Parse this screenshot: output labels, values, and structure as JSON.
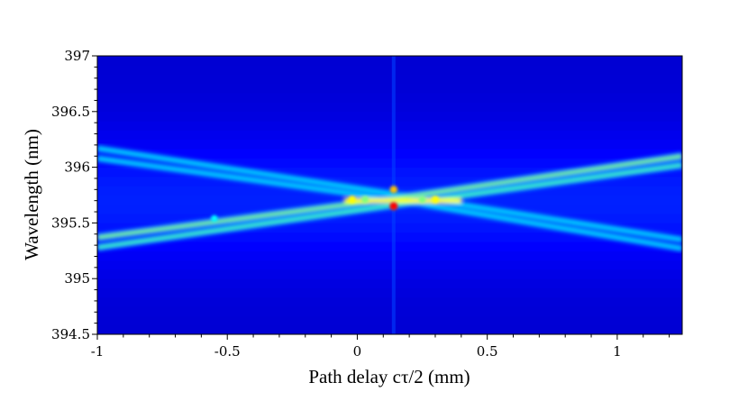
{
  "chart_data": {
    "type": "heatmap",
    "title": "",
    "xlabel": "Path delay cτ/2 (mm)",
    "ylabel": "Wavelength (nm)",
    "xlim": [
      -1,
      1.25
    ],
    "ylim": [
      394.5,
      397
    ],
    "x_ticks": [
      {
        "value": -1,
        "label": "-1"
      },
      {
        "value": -0.5,
        "label": "-0.5"
      },
      {
        "value": 0,
        "label": "0"
      },
      {
        "value": 0.5,
        "label": "0.5"
      },
      {
        "value": 1,
        "label": "1"
      }
    ],
    "y_ticks": [
      {
        "value": 394.5,
        "label": "394.5"
      },
      {
        "value": 395,
        "label": "395"
      },
      {
        "value": 395.5,
        "label": "395.5"
      },
      {
        "value": 396,
        "label": "396"
      },
      {
        "value": 396.5,
        "label": "396.5"
      },
      {
        "value": 397,
        "label": "397"
      }
    ],
    "colormap": [
      "#00008f",
      "#0000ff",
      "#0080ff",
      "#00ffff",
      "#ffff00",
      "#ff0000"
    ],
    "background_level": 0.12,
    "center_delay": 0.14,
    "center_wavelength": 395.7,
    "branches": [
      {
        "x": [
          -1,
          0.14,
          1.25
        ],
        "y": [
          396.17,
          395.76,
          395.35
        ],
        "intensity": 0.55
      },
      {
        "x": [
          -1,
          0.14,
          1.25
        ],
        "y": [
          396.08,
          395.71,
          395.27
        ],
        "intensity": 0.55
      },
      {
        "x": [
          -1,
          0.14,
          1.25
        ],
        "y": [
          395.37,
          395.72,
          396.1
        ],
        "intensity": 0.7
      },
      {
        "x": [
          -1,
          0.14,
          1.25
        ],
        "y": [
          395.28,
          395.66,
          396.02
        ],
        "intensity": 0.65
      }
    ],
    "hot_spots": [
      {
        "x": 0.14,
        "y": 395.65,
        "intensity": 1.0
      },
      {
        "x": 0.14,
        "y": 395.8,
        "intensity": 0.85
      },
      {
        "x": -0.02,
        "y": 395.71,
        "intensity": 0.8
      },
      {
        "x": 0.3,
        "y": 395.71,
        "intensity": 0.8
      },
      {
        "x": 0.03,
        "y": 395.71,
        "intensity": 0.7
      },
      {
        "x": 0.25,
        "y": 395.71,
        "intensity": 0.7
      },
      {
        "x": -0.55,
        "y": 395.54,
        "intensity": 0.6
      }
    ],
    "vertical_streak_x": 0.14,
    "grid": false,
    "legend": "none"
  }
}
